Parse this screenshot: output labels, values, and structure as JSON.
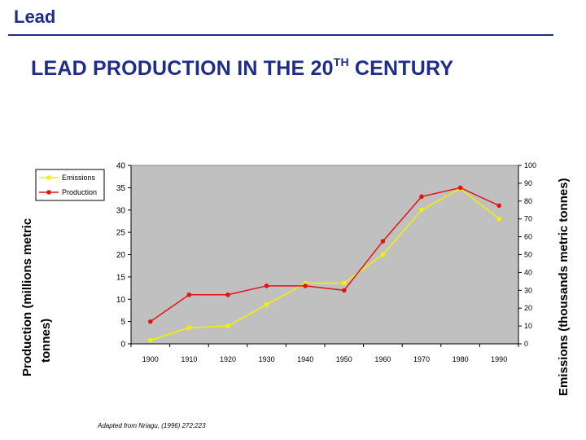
{
  "header": {
    "label": "Lead"
  },
  "title": {
    "main": "LEAD PRODUCTION IN THE 20",
    "superscript": "TH",
    "suffix": " CENTURY"
  },
  "caption": "Adapted from Nriagu, (1996) 272:223",
  "colors": {
    "header": "#1f2d8a",
    "plot_background": "#c0c0c0",
    "emissions": "#f2f200",
    "production": "#e01414"
  },
  "chart_data": {
    "type": "line",
    "x": [
      1900,
      1910,
      1920,
      1930,
      1940,
      1950,
      1960,
      1970,
      1980,
      1990
    ],
    "left_axis": {
      "label_line1": "Production (millions metric",
      "label_line2": "tonnes)",
      "range": [
        0,
        40
      ],
      "ticks": [
        0,
        5,
        10,
        15,
        20,
        25,
        30,
        35,
        40
      ]
    },
    "right_axis": {
      "label": "Emissions (thousands metric tonnes)",
      "range": [
        0,
        100
      ],
      "ticks": [
        0,
        10,
        20,
        30,
        40,
        50,
        60,
        70,
        80,
        90,
        100
      ]
    },
    "series": [
      {
        "name": "Emissions",
        "axis": "right",
        "color": "#f2f200",
        "marker": "square",
        "values": [
          2,
          9,
          10,
          22,
          34,
          34,
          50,
          75,
          87,
          70
        ]
      },
      {
        "name": "Production",
        "axis": "left",
        "color": "#e01414",
        "marker": "star",
        "values": [
          5,
          11,
          11,
          13,
          13,
          12,
          23,
          33,
          35,
          31
        ]
      }
    ],
    "legend": {
      "position": "top-left"
    },
    "grid": false
  }
}
